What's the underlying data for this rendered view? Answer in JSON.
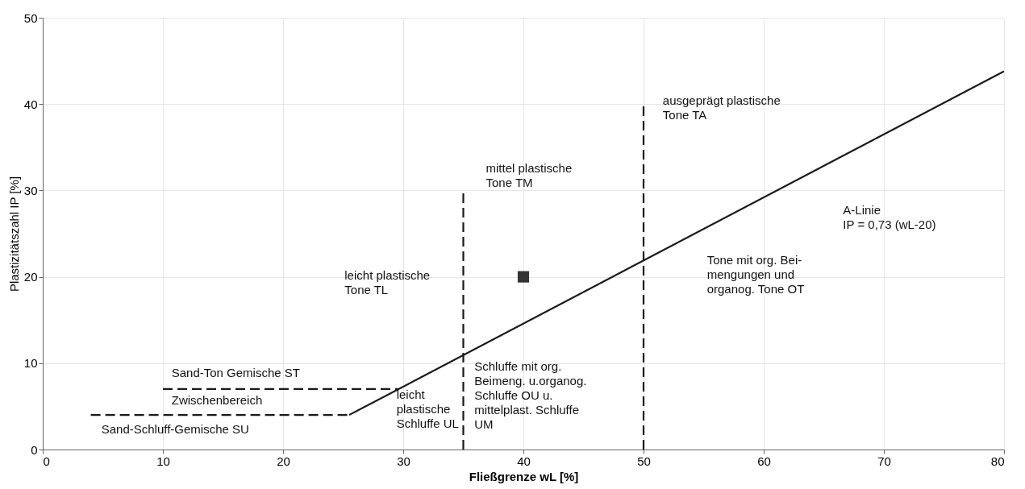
{
  "chart_data": {
    "type": "line",
    "xlabel": "Fließgrenze wL [%]",
    "ylabel": "Plastizitätszahl IP [%]",
    "xlim": [
      0,
      80
    ],
    "xticks": [
      0,
      10,
      20,
      30,
      40,
      50,
      60,
      70,
      80
    ],
    "ylim": [
      0,
      50
    ],
    "yticks": [
      0,
      10,
      20,
      30,
      40,
      50
    ],
    "grid": true,
    "series": [
      {
        "color": "#1a1a1a",
        "line_style": "solid",
        "x": [
          25.5,
          80
        ],
        "values": [
          4,
          43.8
        ]
      },
      {
        "color": "#1a1a1a",
        "line_style": "dashed",
        "x": [
          4,
          25.5
        ],
        "values": [
          4,
          4
        ]
      },
      {
        "color": "#1a1a1a",
        "line_style": "dashed",
        "x": [
          10,
          29.6
        ],
        "values": [
          7,
          7
        ]
      },
      {
        "color": "#1a1a1a",
        "line_style": "dashed",
        "x": [
          35,
          35
        ],
        "values": [
          0,
          30
        ]
      },
      {
        "color": "#1a1a1a",
        "line_style": "dashed",
        "x": [
          50,
          50
        ],
        "values": [
          0,
          40
        ]
      },
      {
        "type": "scatter",
        "color": "#333333",
        "marker": "square",
        "x": [
          40
        ],
        "values": [
          20
        ]
      }
    ],
    "annotations": [
      "Sand-Ton Gemische ST",
      "Zwischenbereich",
      "Sand-Schluff-Gemische SU",
      "leicht plastische\nTone TL",
      "leicht\nplastische\nSchluffe UL",
      "Schluffe mit org.\nBeimeng. u.organog.\nSchluffe OU u.\nmittelplast. Schluffe\nUM",
      "mittel plastische\nTone TM",
      "ausgeprägt plastische\nTone TA",
      "Tone mit org. Bei-\nmengungen und\norganog. Tone OT",
      "A-Linie\nIP = 0,73 (wL-20)"
    ]
  }
}
